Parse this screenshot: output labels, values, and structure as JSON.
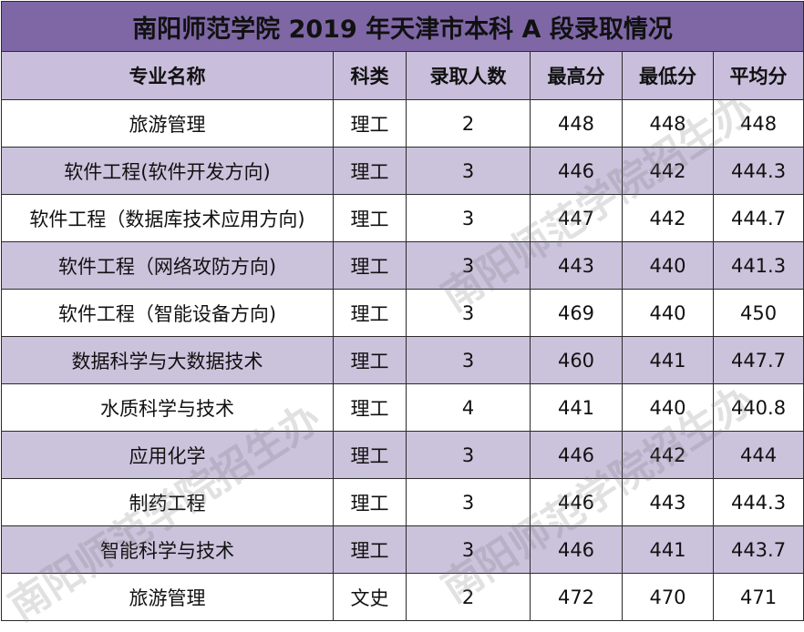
{
  "title": "南阳师范学院 2019 年天津市本科 A 段录取情况",
  "watermark": "南阳师范学院招生办",
  "colors": {
    "title_bg": "#7f67a6",
    "row_alt": "#cbc2dc",
    "header_bg": "#c9bedb"
  },
  "headers": [
    "专业名称",
    "科类",
    "录取人数",
    "最高分",
    "最低分",
    "平均分"
  ],
  "rows": [
    [
      "旅游管理",
      "理工",
      "2",
      "448",
      "448",
      "448"
    ],
    [
      "软件工程(软件开发方向)",
      "理工",
      "3",
      "446",
      "442",
      "444.3"
    ],
    [
      "软件工程（数据库技术应用方向)",
      "理工",
      "3",
      "447",
      "442",
      "444.7"
    ],
    [
      "软件工程（网络攻防方向)",
      "理工",
      "3",
      "443",
      "440",
      "441.3"
    ],
    [
      "软件工程（智能设备方向)",
      "理工",
      "3",
      "469",
      "440",
      "450"
    ],
    [
      "数据科学与大数据技术",
      "理工",
      "3",
      "460",
      "441",
      "447.7"
    ],
    [
      "水质科学与技术",
      "理工",
      "4",
      "441",
      "440",
      "440.8"
    ],
    [
      "应用化学",
      "理工",
      "3",
      "446",
      "442",
      "444"
    ],
    [
      "制药工程",
      "理工",
      "3",
      "446",
      "443",
      "444.3"
    ],
    [
      "智能科学与技术",
      "理工",
      "3",
      "446",
      "441",
      "443.7"
    ],
    [
      "旅游管理",
      "文史",
      "2",
      "472",
      "470",
      "471"
    ]
  ]
}
